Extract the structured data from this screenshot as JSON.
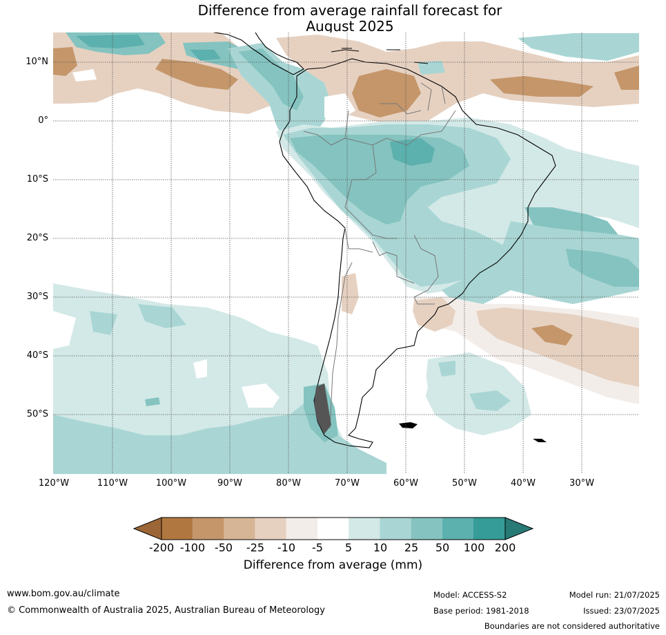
{
  "title": {
    "line1": "Difference from average rainfall forecast for",
    "line2": "August 2025"
  },
  "lat_labels": [
    "10°N",
    "0°",
    "10°S",
    "20°S",
    "30°S",
    "40°S",
    "50°S"
  ],
  "lon_labels": [
    "120°W",
    "110°W",
    "100°W",
    "90°W",
    "80°W",
    "70°W",
    "60°W",
    "50°W",
    "40°W",
    "30°W"
  ],
  "colorbar": {
    "title": "Difference from average (mm)",
    "tick_labels": [
      "-200",
      "-100",
      "-50",
      "-25",
      "-10",
      "-5",
      "5",
      "10",
      "25",
      "50",
      "100",
      "200"
    ],
    "colors": {
      "below_min": "#9c6637",
      "bin_m200_m100": "#b07840",
      "bin_m100_m50": "#c4966a",
      "bin_m50_m25": "#d6b596",
      "bin_m25_m10": "#e6d1c1",
      "bin_m10_m5": "#f3ede9",
      "bin_m5_5": "#ffffff",
      "bin_5_10": "#d3e9e7",
      "bin_10_25": "#a9d6d4",
      "bin_25_50": "#84c3c0",
      "bin_50_100": "#5cb0ad",
      "bin_100_200": "#359c97",
      "above_max": "#287a76"
    }
  },
  "footer": {
    "website": "www.bom.gov.au/climate",
    "copyright": "© Commonwealth of Australia 2025, Australian Bureau of Meteorology",
    "model": "Model: ACCESS-S2",
    "base_period": "Base period: 1981-2018",
    "model_run": "Model run: 21/07/2025",
    "issued": "Issued: 23/07/2025",
    "disclaimer": "Boundaries are not considered authoritative"
  }
}
